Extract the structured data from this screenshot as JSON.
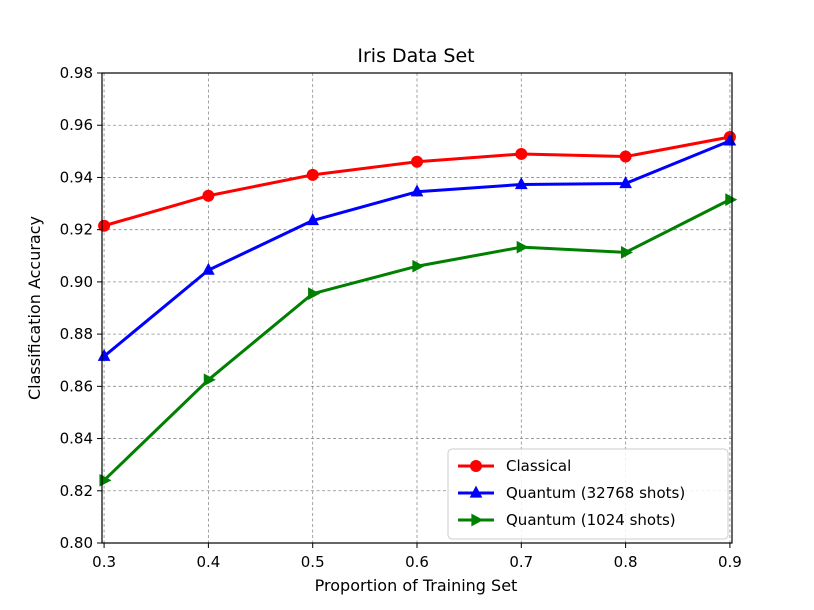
{
  "chart_data": {
    "type": "line",
    "title": "Iris Data Set",
    "xlabel": "Proportion of Training Set",
    "ylabel": "Classification Accuracy",
    "x": [
      0.3,
      0.4,
      0.5,
      0.6,
      0.7,
      0.8,
      0.9
    ],
    "xlim": [
      0.298,
      0.902
    ],
    "ylim": [
      0.8,
      0.98
    ],
    "xticks": [
      "0.3",
      "0.4",
      "0.5",
      "0.6",
      "0.7",
      "0.8",
      "0.9"
    ],
    "yticks": [
      "0.80",
      "0.82",
      "0.84",
      "0.86",
      "0.88",
      "0.90",
      "0.92",
      "0.94",
      "0.96",
      "0.98"
    ],
    "grid": true,
    "legend_position": "lower right",
    "series": [
      {
        "name": "Classical",
        "color": "#ff0000",
        "marker": "circle",
        "values": [
          0.9215,
          0.933,
          0.941,
          0.946,
          0.949,
          0.948,
          0.9555
        ]
      },
      {
        "name": "Quantum (32768 shots)",
        "color": "#0000ff",
        "marker": "triangle-up",
        "values": [
          0.8715,
          0.9045,
          0.9235,
          0.9345,
          0.9373,
          0.9377,
          0.954
        ]
      },
      {
        "name": "Quantum (1024 shots)",
        "color": "#008000",
        "marker": "triangle-right",
        "values": [
          0.824,
          0.8625,
          0.8955,
          0.906,
          0.9133,
          0.9113,
          0.9315
        ]
      }
    ]
  }
}
